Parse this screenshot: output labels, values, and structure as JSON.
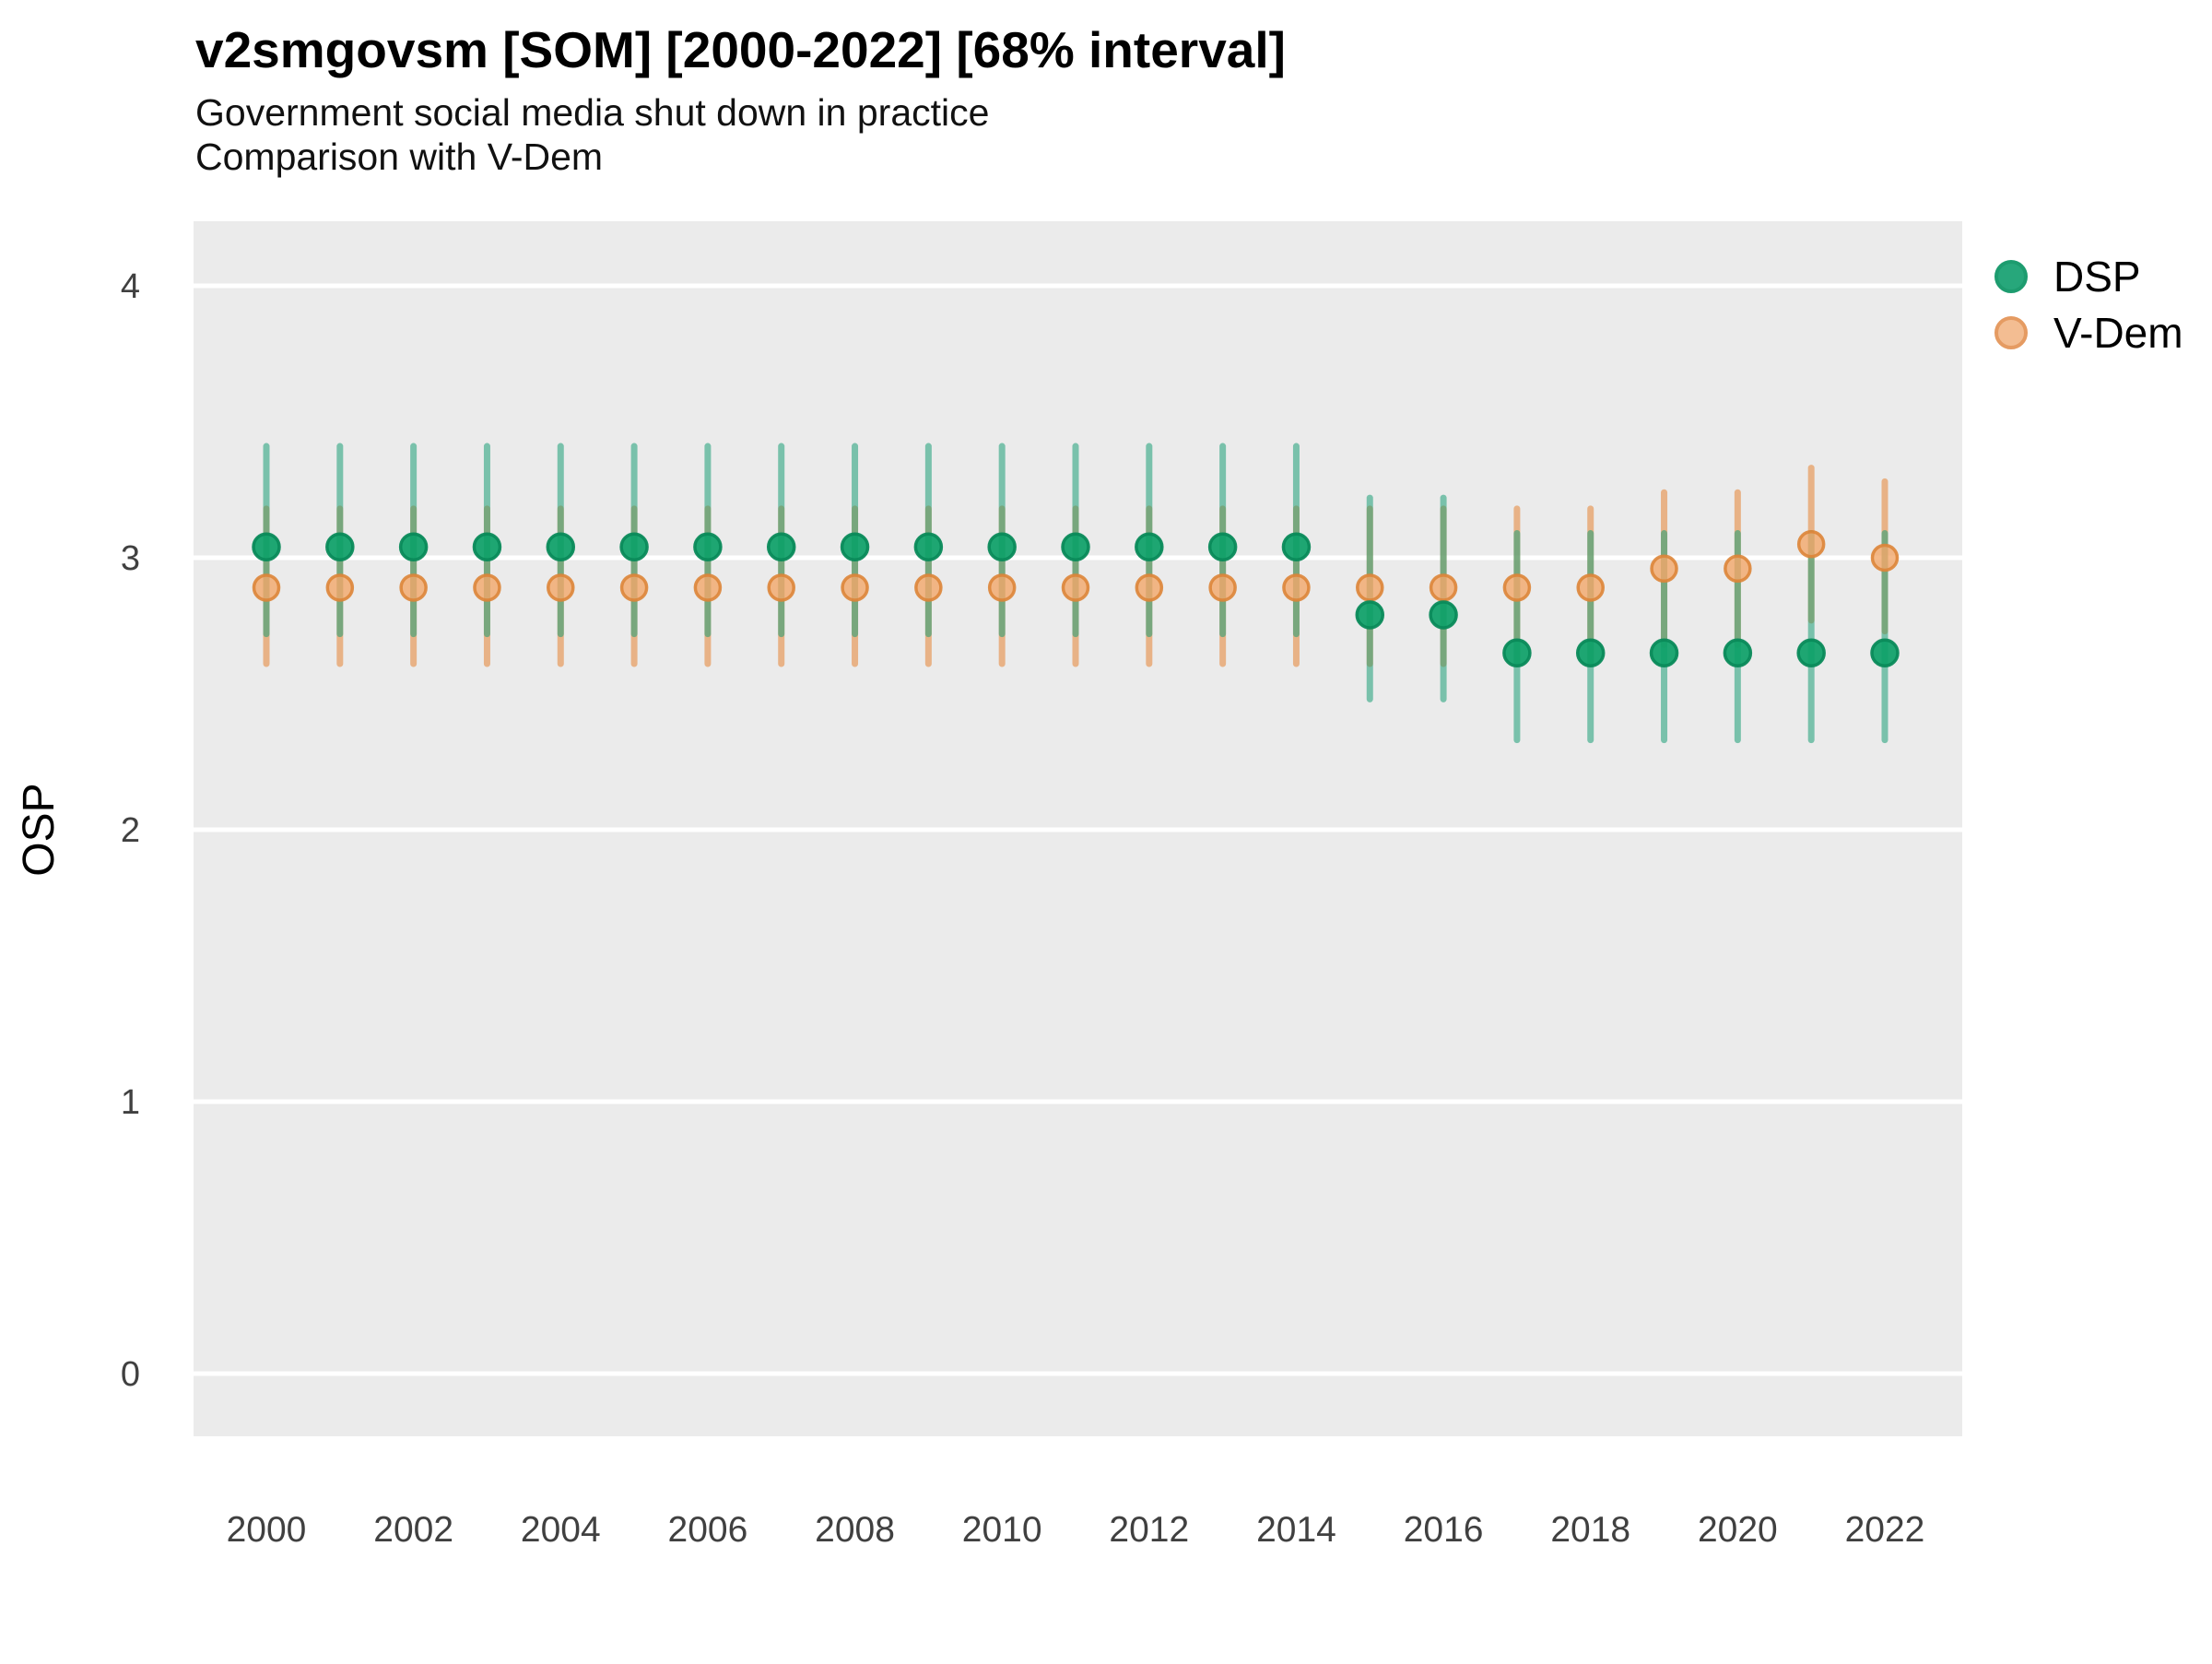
{
  "chart_data": {
    "type": "scatter",
    "title": "v2smgovsm [SOM] [2000-2022] [68% interval]",
    "subtitle": "Government social media shut down in practice",
    "subtitle2": "Comparison with V-Dem",
    "ylabel": "OSP",
    "xlabel": "",
    "x_ticks": [
      2000,
      2002,
      2004,
      2006,
      2008,
      2010,
      2012,
      2014,
      2016,
      2018,
      2020,
      2022
    ],
    "y_ticks": [
      0,
      1,
      2,
      3,
      4
    ],
    "ylim": [
      -0.23,
      4.24
    ],
    "xlim": [
      1999,
      2023
    ],
    "grid": "horizontal-major-only",
    "panel_background": "#ebebeb",
    "gridline_color": "#ffffff",
    "tick_label_color": "#404040",
    "legend_position": "right",
    "legend": [
      {
        "label": "DSP",
        "fill": "#27a77b",
        "stroke": "#1d9c6f"
      },
      {
        "label": "V-Dem",
        "fill": "#f3bd92",
        "stroke": "#e59b62"
      }
    ],
    "interval_note": "68% credible interval shown as vertical bars",
    "series": [
      {
        "name": "V-Dem",
        "bar_color": "rgba(230,140,66,0.60)",
        "dot_fill": "rgba(242,168,106,0.80)",
        "dot_stroke": "rgba(221,133,57,0.90)",
        "points": [
          {
            "year": 2000,
            "mean": 2.89,
            "lo": 2.61,
            "hi": 3.18
          },
          {
            "year": 2001,
            "mean": 2.89,
            "lo": 2.61,
            "hi": 3.18
          },
          {
            "year": 2002,
            "mean": 2.89,
            "lo": 2.61,
            "hi": 3.18
          },
          {
            "year": 2003,
            "mean": 2.89,
            "lo": 2.61,
            "hi": 3.18
          },
          {
            "year": 2004,
            "mean": 2.89,
            "lo": 2.61,
            "hi": 3.18
          },
          {
            "year": 2005,
            "mean": 2.89,
            "lo": 2.61,
            "hi": 3.18
          },
          {
            "year": 2006,
            "mean": 2.89,
            "lo": 2.61,
            "hi": 3.18
          },
          {
            "year": 2007,
            "mean": 2.89,
            "lo": 2.61,
            "hi": 3.18
          },
          {
            "year": 2008,
            "mean": 2.89,
            "lo": 2.61,
            "hi": 3.18
          },
          {
            "year": 2009,
            "mean": 2.89,
            "lo": 2.61,
            "hi": 3.18
          },
          {
            "year": 2010,
            "mean": 2.89,
            "lo": 2.61,
            "hi": 3.18
          },
          {
            "year": 2011,
            "mean": 2.89,
            "lo": 2.61,
            "hi": 3.18
          },
          {
            "year": 2012,
            "mean": 2.89,
            "lo": 2.61,
            "hi": 3.18
          },
          {
            "year": 2013,
            "mean": 2.89,
            "lo": 2.61,
            "hi": 3.18
          },
          {
            "year": 2014,
            "mean": 2.89,
            "lo": 2.61,
            "hi": 3.18
          },
          {
            "year": 2015,
            "mean": 2.89,
            "lo": 2.61,
            "hi": 3.18
          },
          {
            "year": 2016,
            "mean": 2.89,
            "lo": 2.61,
            "hi": 3.18
          },
          {
            "year": 2017,
            "mean": 2.89,
            "lo": 2.61,
            "hi": 3.18
          },
          {
            "year": 2018,
            "mean": 2.89,
            "lo": 2.61,
            "hi": 3.18
          },
          {
            "year": 2019,
            "mean": 2.96,
            "lo": 2.68,
            "hi": 3.24
          },
          {
            "year": 2020,
            "mean": 2.96,
            "lo": 2.68,
            "hi": 3.24
          },
          {
            "year": 2021,
            "mean": 3.05,
            "lo": 2.77,
            "hi": 3.33
          },
          {
            "year": 2022,
            "mean": 3.0,
            "lo": 2.73,
            "hi": 3.28
          }
        ]
      },
      {
        "name": "DSP",
        "bar_color": "rgba(27,158,119,0.55)",
        "dot_fill": "rgba(14,160,104,0.93)",
        "dot_stroke": "rgba(10,138,90,0.95)",
        "points": [
          {
            "year": 2000,
            "mean": 3.04,
            "lo": 2.72,
            "hi": 3.41
          },
          {
            "year": 2001,
            "mean": 3.04,
            "lo": 2.72,
            "hi": 3.41
          },
          {
            "year": 2002,
            "mean": 3.04,
            "lo": 2.72,
            "hi": 3.41
          },
          {
            "year": 2003,
            "mean": 3.04,
            "lo": 2.72,
            "hi": 3.41
          },
          {
            "year": 2004,
            "mean": 3.04,
            "lo": 2.72,
            "hi": 3.41
          },
          {
            "year": 2005,
            "mean": 3.04,
            "lo": 2.72,
            "hi": 3.41
          },
          {
            "year": 2006,
            "mean": 3.04,
            "lo": 2.72,
            "hi": 3.41
          },
          {
            "year": 2007,
            "mean": 3.04,
            "lo": 2.72,
            "hi": 3.41
          },
          {
            "year": 2008,
            "mean": 3.04,
            "lo": 2.72,
            "hi": 3.41
          },
          {
            "year": 2009,
            "mean": 3.04,
            "lo": 2.72,
            "hi": 3.41
          },
          {
            "year": 2010,
            "mean": 3.04,
            "lo": 2.72,
            "hi": 3.41
          },
          {
            "year": 2011,
            "mean": 3.04,
            "lo": 2.72,
            "hi": 3.41
          },
          {
            "year": 2012,
            "mean": 3.04,
            "lo": 2.72,
            "hi": 3.41
          },
          {
            "year": 2013,
            "mean": 3.04,
            "lo": 2.72,
            "hi": 3.41
          },
          {
            "year": 2014,
            "mean": 3.04,
            "lo": 2.72,
            "hi": 3.41
          },
          {
            "year": 2015,
            "mean": 2.79,
            "lo": 2.48,
            "hi": 3.22
          },
          {
            "year": 2016,
            "mean": 2.79,
            "lo": 2.48,
            "hi": 3.22
          },
          {
            "year": 2017,
            "mean": 2.65,
            "lo": 2.33,
            "hi": 3.09
          },
          {
            "year": 2018,
            "mean": 2.65,
            "lo": 2.33,
            "hi": 3.09
          },
          {
            "year": 2019,
            "mean": 2.65,
            "lo": 2.33,
            "hi": 3.09
          },
          {
            "year": 2020,
            "mean": 2.65,
            "lo": 2.33,
            "hi": 3.09
          },
          {
            "year": 2021,
            "mean": 2.65,
            "lo": 2.33,
            "hi": 3.09
          },
          {
            "year": 2022,
            "mean": 2.65,
            "lo": 2.33,
            "hi": 3.09
          }
        ]
      }
    ]
  }
}
